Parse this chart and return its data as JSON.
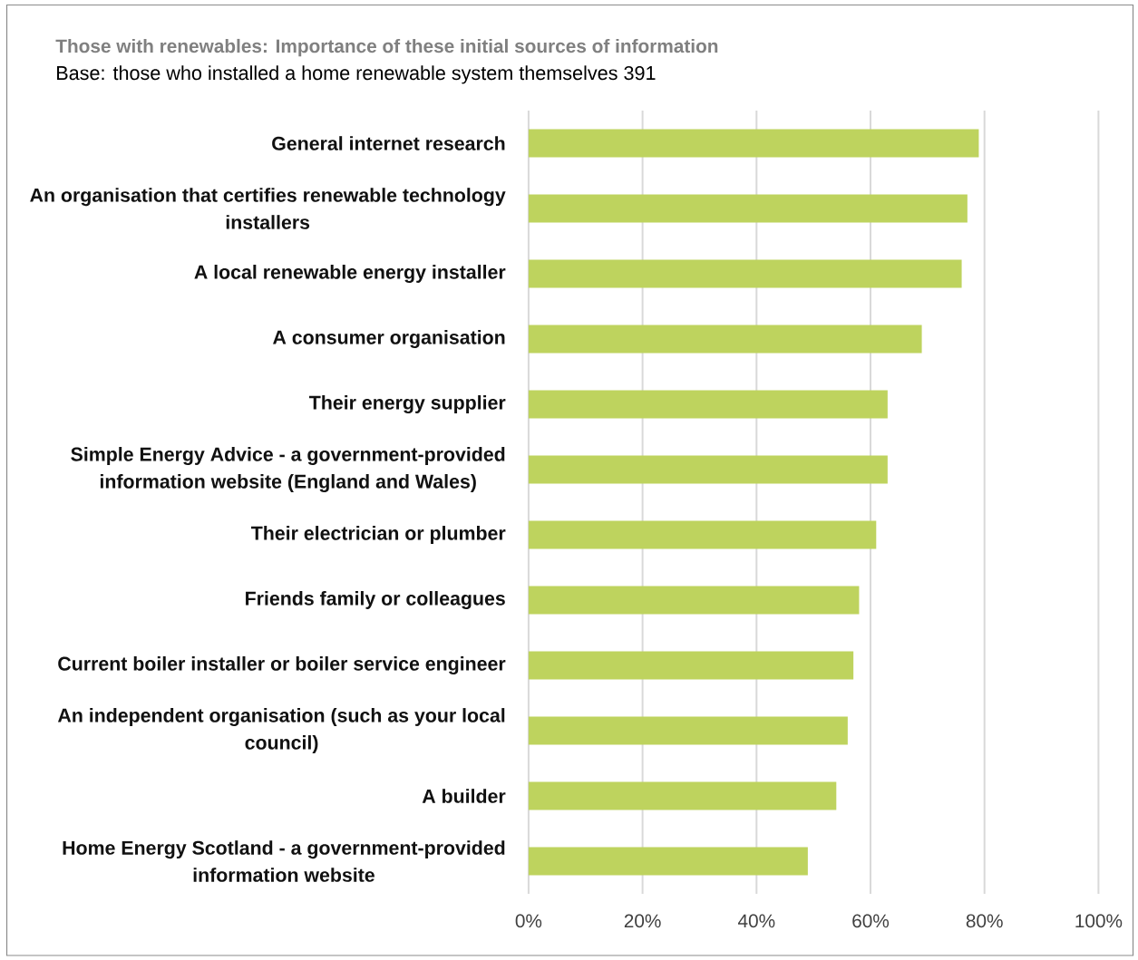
{
  "chart_data": {
    "type": "bar",
    "orientation": "horizontal",
    "title": "Those with renewables: Importance of these initial sources of information",
    "subtitle": "Base: those who installed a home renewable system themselves 391",
    "categories": [
      "General internet research",
      "An organisation that certifies renewable technology installers",
      "A local renewable energy installer",
      "A consumer organisation",
      "Their energy supplier",
      "Simple Energy Advice - a government-provided information website (England and Wales)",
      "Their electrician or plumber",
      "Friends family or colleagues",
      "Current boiler installer or boiler service engineer",
      "An independent organisation (such as your local council)",
      "A builder",
      "Home Energy Scotland - a government-provided information website"
    ],
    "values": [
      79,
      77,
      76,
      69,
      63,
      63,
      61,
      58,
      57,
      56,
      54,
      49
    ],
    "color": "#bed35e",
    "xlim": [
      0,
      100
    ],
    "xticks": [
      {
        "value": 0,
        "label": "0%"
      },
      {
        "value": 20,
        "label": "20%"
      },
      {
        "value": 40,
        "label": "40%"
      },
      {
        "value": 60,
        "label": "60%"
      },
      {
        "value": 80,
        "label": "80%"
      },
      {
        "value": 100,
        "label": "100%"
      }
    ],
    "grid": "x"
  }
}
